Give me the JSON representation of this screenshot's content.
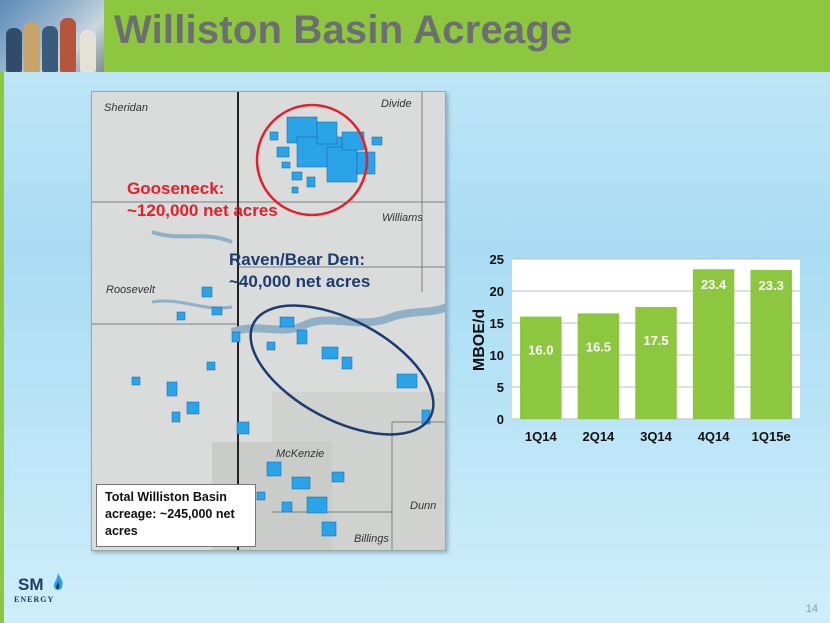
{
  "slide": {
    "title": "Williston Basin Acreage",
    "page_number": "14"
  },
  "map": {
    "county_labels": [
      "Sheridan",
      "Divide",
      "Williams",
      "Roosevelt",
      "McKenzie",
      "Dunn",
      "Billings"
    ],
    "callout_gooseneck": "Gooseneck:\n~120,000 net acres",
    "callout_raven": "Raven/Bear Den:\n~40,000 net acres",
    "total_box": "Total Williston Basin acreage: ~245,000 net acres",
    "colors": {
      "acreage": "#2aa3e8",
      "gooseneck_outline": "#e3202b",
      "raven_outline": "#1d3c6e"
    }
  },
  "logo": {
    "name": "SM",
    "subtitle": "ENERGY"
  },
  "chart_data": {
    "type": "bar",
    "categories": [
      "1Q14",
      "2Q14",
      "3Q14",
      "4Q14",
      "1Q15e"
    ],
    "values": [
      16.0,
      16.5,
      17.5,
      23.4,
      23.3
    ],
    "data_labels": [
      "16.0",
      "16.5",
      "17.5",
      "23.4",
      "23.3"
    ],
    "ylabel": "MBOE/d",
    "ylim": [
      0,
      25
    ],
    "yticks": [
      0,
      5,
      10,
      15,
      20,
      25
    ],
    "grid": true,
    "bar_color": "#8dc63f"
  }
}
